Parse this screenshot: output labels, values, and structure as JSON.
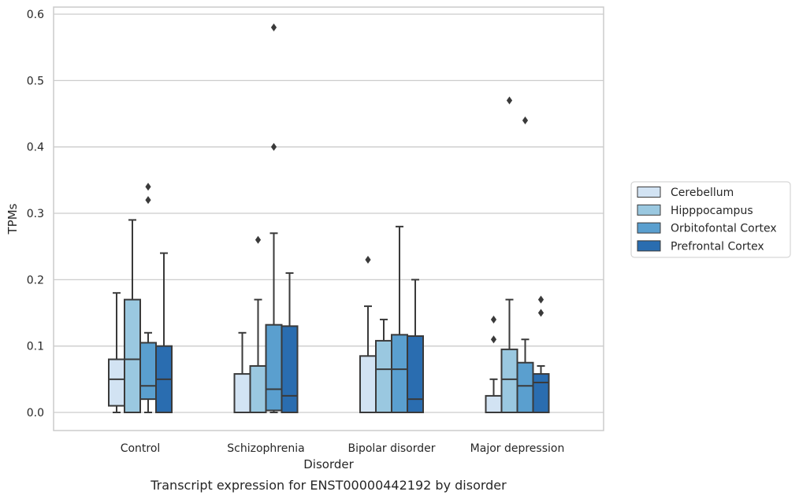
{
  "chart_data": {
    "type": "boxplot",
    "caption": "Transcript expression for ENST00000442192 by disorder",
    "xlabel": "Disorder",
    "ylabel": "TPMs",
    "ylim": [
      -0.028,
      0.61
    ],
    "yticks": [
      "0.0",
      "0.1",
      "0.2",
      "0.3",
      "0.4",
      "0.5",
      "0.6"
    ],
    "grid": "horizontal",
    "legend_position": "right",
    "categories": [
      "Control",
      "Schizophrenia",
      "Bipolar disorder",
      "Major depression"
    ],
    "series": [
      {
        "name": "Cerebellum",
        "color": "#d2e3f3",
        "boxes": [
          {
            "whislo": 0.0,
            "q1": 0.01,
            "med": 0.05,
            "q3": 0.08,
            "whishi": 0.18,
            "fliers": []
          },
          {
            "whislo": 0.0,
            "q1": 0.0,
            "med": 0.0,
            "q3": 0.058,
            "whishi": 0.12,
            "fliers": []
          },
          {
            "whislo": 0.0,
            "q1": 0.0,
            "med": 0.0,
            "q3": 0.085,
            "whishi": 0.16,
            "fliers": [
              0.23
            ]
          },
          {
            "whislo": 0.0,
            "q1": 0.0,
            "med": 0.0,
            "q3": 0.025,
            "whishi": 0.05,
            "fliers": [
              0.11,
              0.14
            ]
          }
        ]
      },
      {
        "name": "Hipppocampus",
        "color": "#9ac8e0",
        "boxes": [
          {
            "whislo": 0.0,
            "q1": 0.0,
            "med": 0.08,
            "q3": 0.17,
            "whishi": 0.29,
            "fliers": []
          },
          {
            "whislo": 0.0,
            "q1": 0.0,
            "med": 0.0,
            "q3": 0.07,
            "whishi": 0.17,
            "fliers": [
              0.26
            ]
          },
          {
            "whislo": 0.0,
            "q1": 0.0,
            "med": 0.065,
            "q3": 0.108,
            "whishi": 0.14,
            "fliers": []
          },
          {
            "whislo": 0.0,
            "q1": 0.0,
            "med": 0.05,
            "q3": 0.095,
            "whishi": 0.17,
            "fliers": [
              0.47
            ]
          }
        ]
      },
      {
        "name": "Orbitofontal Cortex",
        "color": "#5a9fcf",
        "boxes": [
          {
            "whislo": 0.0,
            "q1": 0.02,
            "med": 0.04,
            "q3": 0.105,
            "whishi": 0.12,
            "fliers": [
              0.32,
              0.34
            ]
          },
          {
            "whislo": 0.0,
            "q1": 0.003,
            "med": 0.035,
            "q3": 0.132,
            "whishi": 0.27,
            "fliers": [
              0.4,
              0.58
            ]
          },
          {
            "whislo": 0.0,
            "q1": 0.0,
            "med": 0.065,
            "q3": 0.117,
            "whishi": 0.28,
            "fliers": []
          },
          {
            "whislo": 0.0,
            "q1": 0.0,
            "med": 0.04,
            "q3": 0.075,
            "whishi": 0.11,
            "fliers": [
              0.44
            ]
          }
        ]
      },
      {
        "name": "Prefrontal Cortex",
        "color": "#2a6db0",
        "boxes": [
          {
            "whislo": 0.0,
            "q1": 0.0,
            "med": 0.05,
            "q3": 0.1,
            "whishi": 0.24,
            "fliers": []
          },
          {
            "whislo": 0.0,
            "q1": 0.0,
            "med": 0.025,
            "q3": 0.13,
            "whishi": 0.21,
            "fliers": []
          },
          {
            "whislo": 0.0,
            "q1": 0.0,
            "med": 0.02,
            "q3": 0.115,
            "whishi": 0.2,
            "fliers": []
          },
          {
            "whislo": 0.0,
            "q1": 0.0,
            "med": 0.045,
            "q3": 0.058,
            "whishi": 0.07,
            "fliers": [
              0.15,
              0.17
            ]
          }
        ]
      }
    ]
  }
}
